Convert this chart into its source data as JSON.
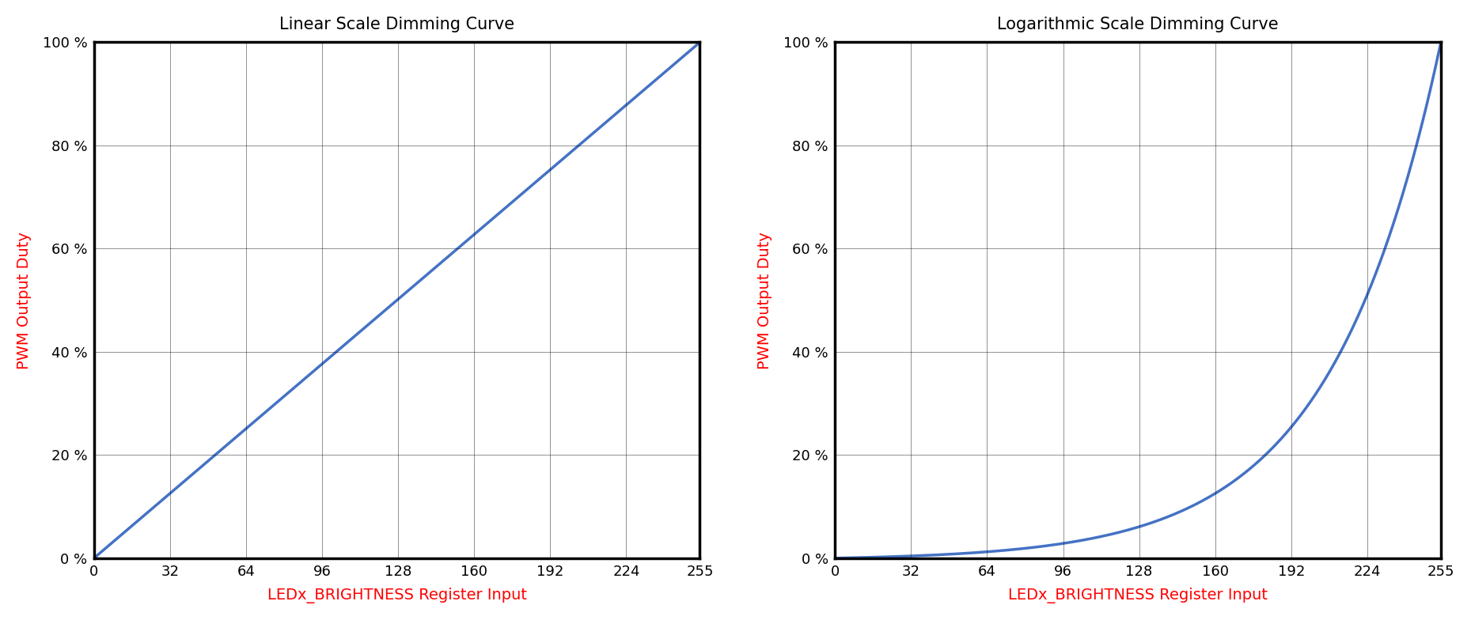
{
  "title_left": "Linear Scale Dimming Curve",
  "title_right": "Logarithmic Scale Dimming Curve",
  "xlabel": "LEDx_BRIGHTNESS Register Input",
  "ylabel": "PWM Output Duty",
  "xlabel_color": "#ff0000",
  "ylabel_color": "#ff0000",
  "title_color": "#000000",
  "line_color": "#4472c4",
  "line_width": 2.5,
  "x_ticks": [
    0,
    32,
    64,
    96,
    128,
    160,
    192,
    224,
    255
  ],
  "y_ticks": [
    0,
    20,
    40,
    60,
    80,
    100
  ],
  "y_tick_labels": [
    "0 %",
    "20 %",
    "40 %",
    "60 %",
    "80 %",
    "100 %"
  ],
  "xlim": [
    0,
    255
  ],
  "ylim": [
    0,
    100
  ],
  "background_color": "#ffffff",
  "grid_color": "#000000",
  "grid_linewidth": 0.6,
  "spine_linewidth": 2.5,
  "axis_label_fontsize": 14,
  "title_fontsize": 15,
  "tick_fontsize": 13,
  "log_k": 7.5
}
